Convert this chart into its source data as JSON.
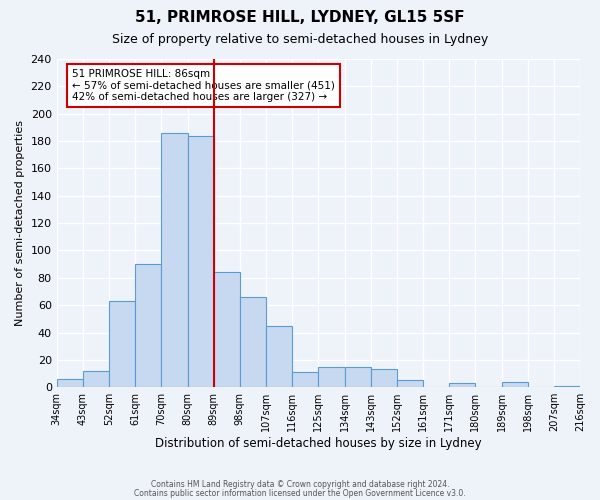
{
  "title": "51, PRIMROSE HILL, LYDNEY, GL15 5SF",
  "subtitle": "Size of property relative to semi-detached houses in Lydney",
  "xlabel": "Distribution of semi-detached houses by size in Lydney",
  "ylabel": "Number of semi-detached properties",
  "footer_line1": "Contains HM Land Registry data © Crown copyright and database right 2024.",
  "footer_line2": "Contains public sector information licensed under the Open Government Licence v3.0.",
  "bin_labels": [
    "34sqm",
    "43sqm",
    "52sqm",
    "61sqm",
    "70sqm",
    "80sqm",
    "89sqm",
    "98sqm",
    "107sqm",
    "116sqm",
    "125sqm",
    "134sqm",
    "143sqm",
    "152sqm",
    "161sqm",
    "171sqm",
    "180sqm",
    "189sqm",
    "198sqm",
    "207sqm",
    "216sqm"
  ],
  "bar_values": [
    6,
    12,
    63,
    90,
    186,
    184,
    84,
    66,
    45,
    11,
    15,
    15,
    13,
    5,
    0,
    3,
    0,
    4,
    0,
    1
  ],
  "bar_color": "#c6d9f0",
  "bar_edge_color": "#5b9bd5",
  "background_color": "#eef2f9",
  "grid_color": "#ffffff",
  "ylim": [
    0,
    240
  ],
  "yticks": [
    0,
    20,
    40,
    60,
    80,
    100,
    120,
    140,
    160,
    180,
    200,
    220,
    240
  ],
  "marker_bin_index": 5,
  "annotation_title": "51 PRIMROSE HILL: 86sqm",
  "annotation_line1": "← 57% of semi-detached houses are smaller (451)",
  "annotation_line2": "42% of semi-detached houses are larger (327) →",
  "annotation_box_color": "#ffffff",
  "annotation_box_edge": "#cc0000",
  "marker_line_color": "#cc0000"
}
